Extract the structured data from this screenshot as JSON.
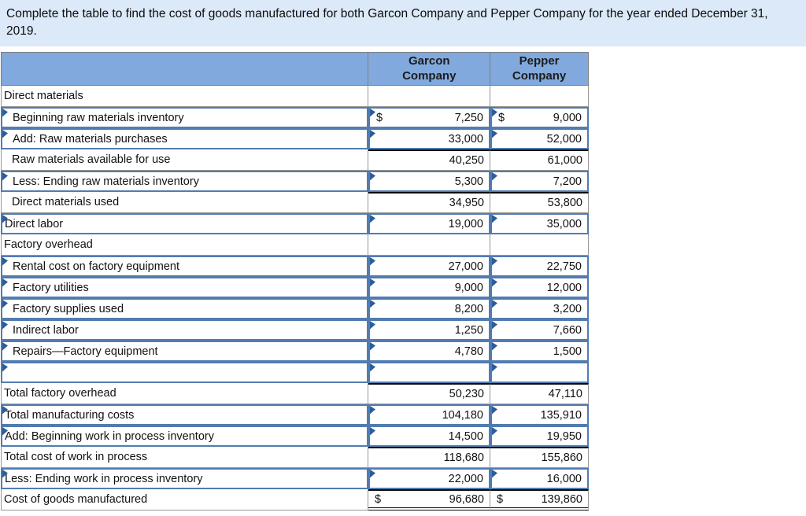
{
  "title": "Complete the table to find the cost of goods manufactured for both Garcon Company and Pepper Company for the year ended December 31, 2019.",
  "colors": {
    "title_bar_bg": "#dbe9f8",
    "header_bg": "#81a9dd",
    "input_border": "#527cb0",
    "flag_marker": "#2b5d9b",
    "grid_border": "#979797",
    "rule_black": "#0a0a0a"
  },
  "table": {
    "dollar_sign": "$",
    "header": {
      "blank": "",
      "garcon": "Garcon\nCompany",
      "pepper": "Pepper\nCompany"
    },
    "rows": [
      {
        "label": "Direct materials",
        "indent": false,
        "input": false,
        "dollar": false,
        "top_rule": false,
        "double_bottom": false,
        "garcon": "",
        "pepper": ""
      },
      {
        "label": "Beginning raw materials inventory",
        "indent": true,
        "input": true,
        "dollar": true,
        "top_rule": false,
        "double_bottom": false,
        "garcon": "7,250",
        "pepper": "9,000"
      },
      {
        "label": "Add: Raw materials purchases",
        "indent": true,
        "input": true,
        "dollar": false,
        "top_rule": false,
        "double_bottom": false,
        "garcon": "33,000",
        "pepper": "52,000"
      },
      {
        "label": "Raw materials available for use",
        "indent": true,
        "input": false,
        "dollar": false,
        "top_rule": true,
        "double_bottom": false,
        "garcon": "40,250",
        "pepper": "61,000"
      },
      {
        "label": "Less: Ending raw materials inventory",
        "indent": true,
        "input": true,
        "dollar": false,
        "top_rule": false,
        "double_bottom": false,
        "garcon": "5,300",
        "pepper": "7,200"
      },
      {
        "label": "Direct materials used",
        "indent": true,
        "input": false,
        "dollar": false,
        "top_rule": true,
        "double_bottom": false,
        "garcon": "34,950",
        "pepper": "53,800"
      },
      {
        "label": "Direct labor",
        "indent": false,
        "input": true,
        "dollar": false,
        "top_rule": false,
        "double_bottom": false,
        "garcon": "19,000",
        "pepper": "35,000"
      },
      {
        "label": "Factory overhead",
        "indent": false,
        "input": false,
        "dollar": false,
        "top_rule": false,
        "double_bottom": false,
        "garcon": "",
        "pepper": ""
      },
      {
        "label": "Rental cost on factory equipment",
        "indent": true,
        "input": true,
        "dollar": false,
        "top_rule": false,
        "double_bottom": false,
        "garcon": "27,000",
        "pepper": "22,750"
      },
      {
        "label": "Factory utilities",
        "indent": true,
        "input": true,
        "dollar": false,
        "top_rule": false,
        "double_bottom": false,
        "garcon": "9,000",
        "pepper": "12,000"
      },
      {
        "label": "Factory supplies used",
        "indent": true,
        "input": true,
        "dollar": false,
        "top_rule": false,
        "double_bottom": false,
        "garcon": "8,200",
        "pepper": "3,200"
      },
      {
        "label": "Indirect labor",
        "indent": true,
        "input": true,
        "dollar": false,
        "top_rule": false,
        "double_bottom": false,
        "garcon": "1,250",
        "pepper": "7,660"
      },
      {
        "label": "Repairs—Factory equipment",
        "indent": true,
        "input": true,
        "dollar": false,
        "top_rule": false,
        "double_bottom": false,
        "garcon": "4,780",
        "pepper": "1,500"
      },
      {
        "label": "",
        "indent": false,
        "input": true,
        "dollar": false,
        "top_rule": false,
        "double_bottom": false,
        "garcon": "",
        "pepper": ""
      },
      {
        "label": "Total factory overhead",
        "indent": false,
        "input": false,
        "dollar": false,
        "top_rule": true,
        "double_bottom": false,
        "garcon": "50,230",
        "pepper": "47,110"
      },
      {
        "label": "Total manufacturing costs",
        "indent": false,
        "input": true,
        "dollar": false,
        "top_rule": false,
        "double_bottom": false,
        "garcon": "104,180",
        "pepper": "135,910"
      },
      {
        "label": "Add: Beginning work in process inventory",
        "indent": false,
        "input": true,
        "dollar": false,
        "top_rule": false,
        "double_bottom": false,
        "garcon": "14,500",
        "pepper": "19,950"
      },
      {
        "label": "Total cost of work in process",
        "indent": false,
        "input": false,
        "dollar": false,
        "top_rule": true,
        "double_bottom": false,
        "garcon": "118,680",
        "pepper": "155,860"
      },
      {
        "label": "Less: Ending work in process inventory",
        "indent": false,
        "input": true,
        "dollar": false,
        "top_rule": false,
        "double_bottom": false,
        "garcon": "22,000",
        "pepper": "16,000"
      },
      {
        "label": "Cost of goods manufactured",
        "indent": false,
        "input": false,
        "dollar": true,
        "top_rule": true,
        "double_bottom": true,
        "garcon": "96,680",
        "pepper": "139,860"
      }
    ]
  }
}
